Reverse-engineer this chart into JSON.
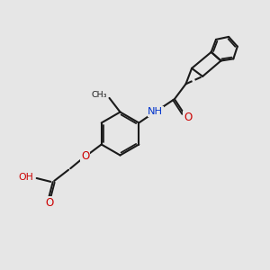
{
  "bg_color": "#e6e6e6",
  "bond_color": "#1a1a1a",
  "bond_width": 1.5,
  "O_color": "#cc0000",
  "N_color": "#0033cc",
  "figsize": [
    3.0,
    3.0
  ],
  "dpi": 100,
  "xlim": [
    0,
    10
  ],
  "ylim": [
    0,
    10
  ]
}
